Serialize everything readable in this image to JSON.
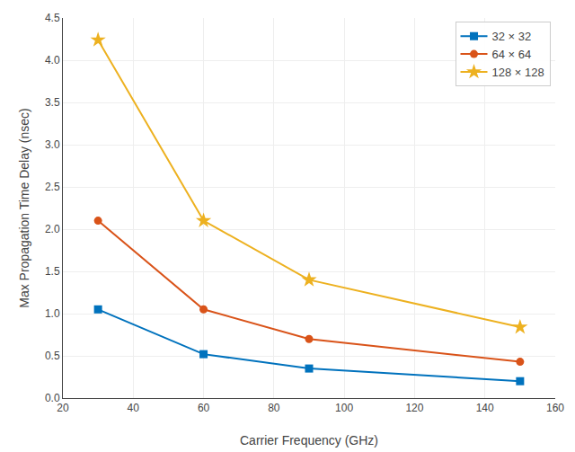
{
  "chart_data": {
    "type": "line",
    "xlabel": "Carrier Frequency (GHz)",
    "ylabel": "Max Propagation Time Delay (nsec)",
    "x": [
      30,
      60,
      90,
      150
    ],
    "series": [
      {
        "name": "32 × 32",
        "color": "#0072BD",
        "marker": "square",
        "line_style": "solid",
        "values": [
          1.05,
          0.52,
          0.35,
          0.2
        ]
      },
      {
        "name": "64 × 64",
        "color": "#D95319",
        "marker": "circle",
        "line_style": "solid",
        "values": [
          2.1,
          1.05,
          0.7,
          0.43
        ]
      },
      {
        "name": "128 × 128",
        "color": "#EDB120",
        "marker": "star",
        "line_style": "solid",
        "values": [
          4.24,
          2.1,
          1.4,
          0.84
        ]
      }
    ],
    "xlim": [
      20,
      160
    ],
    "ylim": [
      0,
      4.5
    ],
    "xticks": [
      20,
      40,
      60,
      80,
      100,
      120,
      140,
      160
    ],
    "yticks": [
      {
        "value": 0,
        "label": "0.0"
      },
      0.5,
      {
        "value": 1,
        "label": "1.0"
      },
      1.5,
      {
        "value": 2,
        "label": "2.0"
      },
      2.5,
      {
        "value": 3,
        "label": "3.0"
      },
      3.5,
      {
        "value": 4,
        "label": "4.0"
      },
      4.5
    ],
    "grid": true,
    "legend": "upper right"
  }
}
